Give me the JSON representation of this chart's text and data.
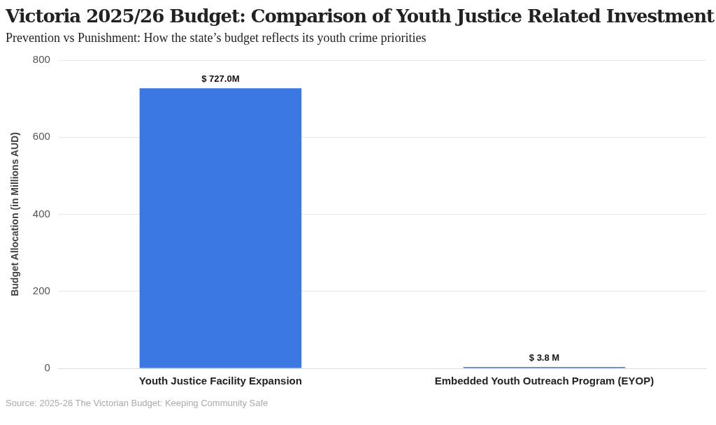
{
  "chart_data": {
    "type": "bar",
    "title": "Victoria 2025/26 Budget: Comparison of Youth Justice Related Investment",
    "subtitle": "Prevention vs Punishment: How the state’s budget reflects its youth crime priorities",
    "ylabel": "Budget Allocation (in Millions AUD)",
    "categories": [
      "Youth Justice Facility Expansion",
      "Embedded Youth Outreach Program (EYOP)"
    ],
    "values": [
      727.0,
      3.8
    ],
    "value_labels": [
      "$ 727.0M",
      "$ 3.8 M"
    ],
    "color": "#3b78e3",
    "ylim": [
      0,
      800
    ],
    "yticks": [
      0,
      200,
      400,
      600,
      800
    ],
    "grid": "y",
    "annotations": [
      "Source: 2025-26 The Victorian Budget: Keeping Community Safe"
    ]
  }
}
